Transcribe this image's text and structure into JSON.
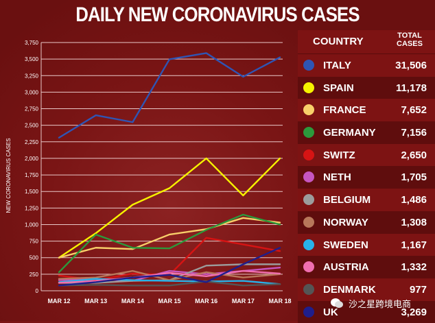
{
  "title": "DAILY NEW CORONAVIRUS CASES",
  "table": {
    "header_country": "COUNTRY",
    "header_total_line1": "TOTAL",
    "header_total_line2": "CASES",
    "rows": [
      {
        "name": "ITALY",
        "total": "31,506",
        "color": "#2f55b4"
      },
      {
        "name": "SPAIN",
        "total": "11,178",
        "color": "#f6f200"
      },
      {
        "name": "FRANCE",
        "total": "7,652",
        "color": "#f8cf6a"
      },
      {
        "name": "GERMANY",
        "total": "7,156",
        "color": "#2c9a3c"
      },
      {
        "name": "SWITZ",
        "total": "2,650",
        "color": "#d61414"
      },
      {
        "name": "NETH",
        "total": "1,705",
        "color": "#c656c0"
      },
      {
        "name": "BELGIUM",
        "total": "1,486",
        "color": "#9c9c9c"
      },
      {
        "name": "NORWAY",
        "total": "1,308",
        "color": "#b8775a"
      },
      {
        "name": "SWEDEN",
        "total": "1,167",
        "color": "#28b1e8"
      },
      {
        "name": "AUSTRIA",
        "total": "1,332",
        "color": "#f06fb0"
      },
      {
        "name": "DENMARK",
        "total": "977",
        "color": "#555555"
      },
      {
        "name": "UK",
        "total": "3,269",
        "color": "#1f1e8c"
      }
    ]
  },
  "watermark": "沙之星跨境电商",
  "chart_data": {
    "type": "line",
    "title": "DAILY NEW CORONAVIRUS CASES",
    "ylabel": "NEW CORONAVIRUS CASES",
    "xlabel": "",
    "categories": [
      "MAR 12",
      "MAR 13",
      "MAR 14",
      "MAR 15",
      "MAR 16",
      "MAR 17",
      "MAR 18"
    ],
    "ylim": [
      0,
      3750
    ],
    "yticks": [
      0,
      250,
      500,
      750,
      "1,000",
      "1,250",
      "1,500",
      "1,750",
      "2,000",
      "2,250",
      "2,500",
      "2,750",
      "3,000",
      "3,250",
      "3,500",
      "3,750"
    ],
    "ytick_values": [
      0,
      250,
      500,
      750,
      1000,
      1250,
      1500,
      1750,
      2000,
      2250,
      2500,
      2750,
      3000,
      3250,
      3500,
      3750
    ],
    "grid": true,
    "series": [
      {
        "name": "ITALY",
        "color": "#2f55b4",
        "values": [
          2313,
          2651,
          2547,
          3497,
          3590,
          3233,
          3526
        ]
      },
      {
        "name": "SPAIN",
        "color": "#f6f200",
        "values": [
          500,
          870,
          1300,
          1550,
          2000,
          1440,
          2000
        ]
      },
      {
        "name": "FRANCE",
        "color": "#f8cf6a",
        "values": [
          500,
          650,
          630,
          850,
          930,
          1100,
          1030
        ]
      },
      {
        "name": "GERMANY",
        "color": "#2c9a3c",
        "values": [
          280,
          850,
          650,
          640,
          920,
          1150,
          1000
        ]
      },
      {
        "name": "SWITZ",
        "color": "#d61414",
        "values": [
          230,
          160,
          260,
          240,
          800,
          700,
          600
        ]
      },
      {
        "name": "NETH",
        "color": "#c656c0",
        "values": [
          160,
          180,
          150,
          300,
          250,
          300,
          350
        ]
      },
      {
        "name": "BELGIUM",
        "color": "#9c9c9c",
        "values": [
          120,
          120,
          150,
          160,
          380,
          400,
          400
        ]
      },
      {
        "name": "NORWAY",
        "color": "#b8775a",
        "values": [
          180,
          200,
          300,
          160,
          280,
          200,
          250
        ]
      },
      {
        "name": "SWEDEN",
        "color": "#28b1e8",
        "values": [
          130,
          180,
          160,
          150,
          140,
          150,
          100
        ]
      },
      {
        "name": "AUSTRIA",
        "color": "#f06fb0",
        "values": [
          120,
          150,
          200,
          270,
          220,
          300,
          260
        ]
      },
      {
        "name": "DENMARK",
        "color": "#555555",
        "values": [
          80,
          90,
          80,
          80,
          140,
          80,
          100
        ]
      },
      {
        "name": "UK",
        "color": "#1f1e8c",
        "values": [
          80,
          130,
          200,
          240,
          130,
          400,
          650
        ]
      }
    ]
  }
}
